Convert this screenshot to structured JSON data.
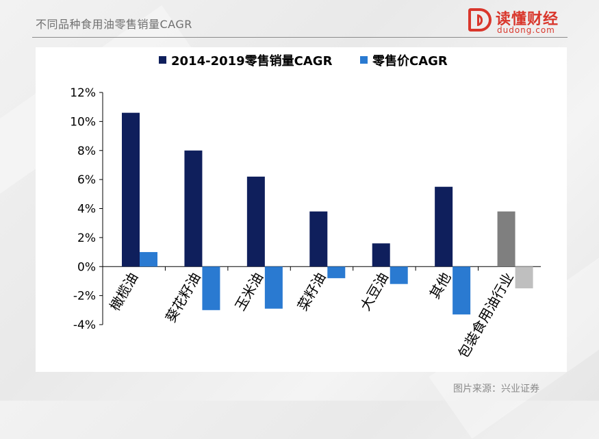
{
  "header": {
    "title": "不同品种食用油零售销量CAGR",
    "logo_name": "读懂财经",
    "logo_url": "dudong.com",
    "logo_color": "#d9362b"
  },
  "source_note": "图片来源：兴业证券",
  "chart_data": {
    "type": "bar",
    "categories": [
      "橄榄油",
      "葵花籽油",
      "玉米油",
      "菜籽油",
      "大豆油",
      "其他",
      "包装食用油行业"
    ],
    "series": [
      {
        "name": "2014-2019零售销量CAGR",
        "color": "#0f1f5c",
        "values": [
          10.6,
          8.0,
          6.2,
          3.8,
          1.6,
          5.5,
          3.8
        ],
        "highlight_colors": [
          null,
          null,
          null,
          null,
          null,
          null,
          "#7f7f7f"
        ]
      },
      {
        "name": "零售价CAGR",
        "color": "#2a7ad1",
        "values": [
          1.0,
          -3.0,
          -2.9,
          -0.8,
          -1.2,
          -3.3,
          -1.5
        ],
        "highlight_colors": [
          null,
          null,
          null,
          null,
          null,
          null,
          "#bfbfbf"
        ]
      }
    ],
    "ylim": [
      -4,
      12
    ],
    "yticks": [
      "-4%",
      "-2%",
      "0%",
      "2%",
      "4%",
      "6%",
      "8%",
      "10%",
      "12%"
    ],
    "legend_position": "top",
    "grid": false
  }
}
